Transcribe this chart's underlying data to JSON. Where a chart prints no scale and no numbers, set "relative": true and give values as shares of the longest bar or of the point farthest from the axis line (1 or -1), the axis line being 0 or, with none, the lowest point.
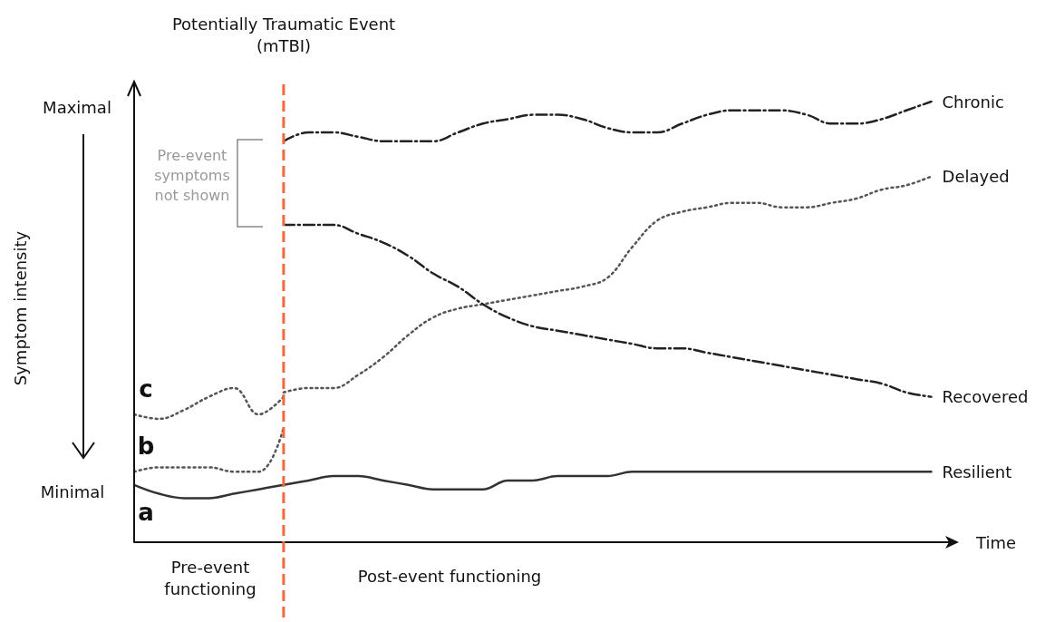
{
  "chart_data": {
    "type": "line",
    "relative": true,
    "marker": "none",
    "grid": false,
    "legend": false,
    "xlabel": "Time",
    "categories": [
      null,
      null,
      null,
      null,
      null,
      null,
      null,
      null,
      null,
      null,
      null,
      null,
      null,
      null,
      null,
      null,
      null,
      null,
      null,
      null,
      null,
      null,
      null,
      null,
      null,
      null,
      null,
      null,
      null,
      null,
      null,
      null,
      null,
      null
    ],
    "series": [
      {
        "name": "a",
        "color": "#333333",
        "line_style": "solid",
        "values": [
          0.13,
          0.11,
          0.1,
          0.1,
          0.11,
          0.12,
          0.13,
          null,
          null,
          null,
          null,
          null,
          null,
          null,
          null,
          null,
          null,
          null,
          null,
          null,
          null,
          null,
          null,
          null,
          null,
          null,
          null,
          null,
          null,
          null,
          null,
          null,
          null,
          null
        ]
      },
      {
        "name": "Resilient",
        "color": "#333333",
        "line_style": "solid",
        "values": [
          null,
          null,
          null,
          null,
          null,
          null,
          0.13,
          0.14,
          0.15,
          0.15,
          0.14,
          0.13,
          0.12,
          0.12,
          0.12,
          0.14,
          0.14,
          0.15,
          0.15,
          0.15,
          0.16,
          0.16,
          0.16,
          0.16,
          0.16,
          0.16,
          0.16,
          0.16,
          0.16,
          0.16,
          0.16,
          0.16,
          0.16,
          null
        ]
      },
      {
        "name": "b",
        "color": "#555555",
        "line_style": "dotted",
        "values": [
          0.16,
          0.17,
          0.17,
          0.17,
          0.16,
          0.16,
          0.26,
          null,
          null,
          null,
          null,
          null,
          null,
          null,
          null,
          null,
          null,
          null,
          null,
          null,
          null,
          null,
          null,
          null,
          null,
          null,
          null,
          null,
          null,
          null,
          null,
          null,
          null,
          null
        ]
      },
      {
        "name": "c",
        "color": "#555555",
        "line_style": "dotted",
        "values": [
          0.29,
          0.28,
          0.3,
          0.33,
          0.35,
          0.29,
          0.33,
          null,
          null,
          null,
          null,
          null,
          null,
          null,
          null,
          null,
          null,
          null,
          null,
          null,
          null,
          null,
          null,
          null,
          null,
          null,
          null,
          null,
          null,
          null,
          null,
          null,
          null,
          null
        ]
      },
      {
        "name": "Delayed",
        "color": "#555555",
        "line_style": "dotted",
        "values": [
          null,
          null,
          null,
          null,
          null,
          null,
          0.34,
          0.35,
          0.35,
          0.38,
          0.42,
          0.47,
          0.51,
          0.53,
          0.54,
          0.55,
          0.56,
          0.57,
          0.58,
          0.6,
          0.67,
          0.73,
          0.75,
          0.76,
          0.77,
          0.77,
          0.76,
          0.76,
          0.77,
          0.78,
          0.8,
          0.81,
          0.83,
          null
        ]
      },
      {
        "name": "Chronic",
        "color": "#222222",
        "line_style": "dashed",
        "values": [
          null,
          null,
          null,
          null,
          null,
          null,
          0.91,
          0.93,
          0.93,
          0.92,
          0.91,
          0.91,
          0.91,
          0.93,
          0.95,
          0.96,
          0.97,
          0.97,
          0.96,
          0.94,
          0.93,
          0.93,
          0.95,
          0.97,
          0.98,
          0.98,
          0.98,
          0.97,
          0.95,
          0.95,
          0.96,
          0.98,
          1.0,
          null
        ]
      },
      {
        "name": "Recovered",
        "color": "#222222",
        "line_style": "dashed",
        "values": [
          null,
          null,
          null,
          null,
          null,
          null,
          0.72,
          0.72,
          0.72,
          0.7,
          0.68,
          0.65,
          0.61,
          0.58,
          0.54,
          0.51,
          0.49,
          0.48,
          0.47,
          0.46,
          0.45,
          0.44,
          0.44,
          0.43,
          0.42,
          0.41,
          0.4,
          0.39,
          0.38,
          0.37,
          0.36,
          0.34,
          0.33,
          null
        ]
      }
    ],
    "annotations": [
      "Maximal",
      "Minimal",
      "Pre-event\nsymptoms\nnot shown",
      "Pre-event\nfunctioning",
      "Post-event functioning",
      "Potentially Traumatic Event\n(mTBI)",
      "Symptom intensity"
    ]
  }
}
